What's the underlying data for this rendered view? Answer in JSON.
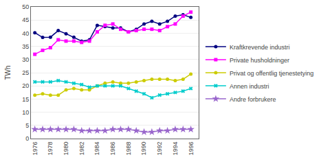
{
  "chart_data": {
    "type": "line",
    "x": [
      1976,
      1977,
      1978,
      1979,
      1980,
      1981,
      1982,
      1983,
      1984,
      1985,
      1986,
      1987,
      1988,
      1989,
      1990,
      1991,
      1992,
      1993,
      1994,
      1995,
      1996
    ],
    "series": [
      {
        "name": "Kraftkrevende industri",
        "color": "#000080",
        "marker": "circle",
        "values": [
          40.2,
          38.4,
          38.5,
          41.0,
          39.8,
          38.5,
          37.0,
          37.5,
          43.0,
          42.5,
          42.0,
          42.0,
          40.5,
          41.5,
          43.5,
          44.5,
          43.5,
          44.5,
          46.5,
          47.0,
          46.0
        ]
      },
      {
        "name": "Private husholdninger",
        "color": "#ff00ff",
        "marker": "square",
        "values": [
          32.0,
          33.5,
          34.5,
          37.5,
          37.0,
          37.0,
          36.5,
          37.0,
          40.5,
          43.0,
          43.5,
          41.5,
          40.5,
          41.0,
          41.5,
          41.5,
          41.0,
          42.5,
          43.5,
          46.5,
          48.0
        ]
      },
      {
        "name": "Privat og offentlig tjenestetying",
        "color": "#cccc00",
        "marker": "circle",
        "values": [
          16.5,
          17.0,
          16.5,
          16.5,
          18.5,
          19.0,
          18.5,
          18.5,
          20.0,
          21.0,
          21.5,
          21.0,
          21.0,
          21.5,
          22.0,
          22.5,
          22.5,
          22.5,
          22.0,
          22.5,
          24.5
        ]
      },
      {
        "name": "Annen industri",
        "color": "#00cccc",
        "marker": "x",
        "values": [
          21.5,
          21.5,
          21.5,
          22.0,
          21.5,
          21.0,
          20.5,
          19.5,
          20.0,
          20.0,
          20.0,
          20.0,
          19.0,
          18.0,
          17.0,
          15.5,
          16.5,
          17.0,
          17.5,
          18.0,
          19.0
        ]
      },
      {
        "name": "Andre forbrukere",
        "color": "#9966cc",
        "marker": "star",
        "values": [
          3.5,
          3.5,
          3.5,
          3.5,
          3.5,
          3.5,
          3.0,
          3.0,
          3.0,
          3.0,
          3.5,
          3.5,
          3.5,
          3.0,
          2.5,
          2.5,
          3.0,
          3.0,
          3.5,
          3.5,
          3.5
        ]
      }
    ],
    "ylabel": "TWh",
    "xlim": [
      1975.5,
      1997
    ],
    "xticks": [
      1976,
      1978,
      1980,
      1982,
      1984,
      1986,
      1988,
      1990,
      1992,
      1994,
      1996
    ],
    "ylim": [
      0,
      50
    ],
    "yticks": [
      0,
      5,
      10,
      15,
      20,
      25,
      30,
      35,
      40,
      45,
      50
    ],
    "grid": "y",
    "legend": "right"
  }
}
